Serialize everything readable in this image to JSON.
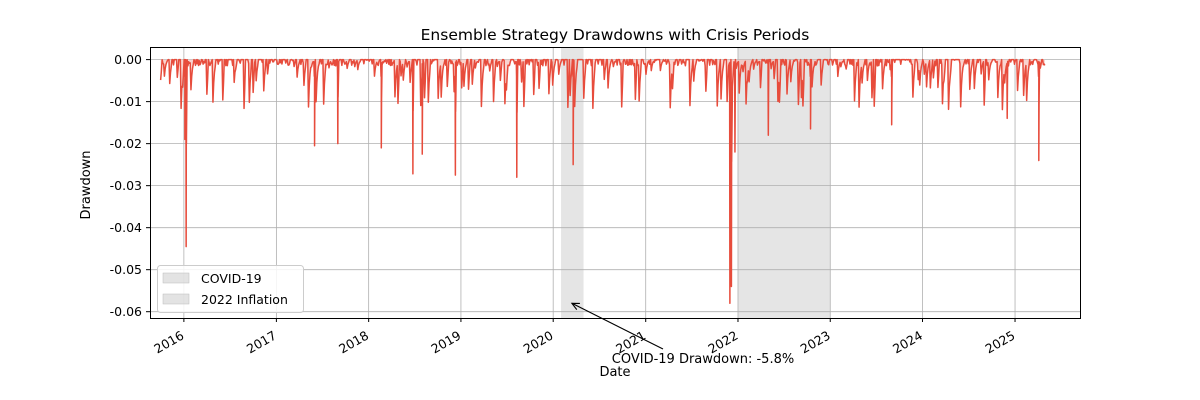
{
  "chart_data": {
    "type": "area",
    "title": "Ensemble Strategy Drawdowns with Crisis Periods",
    "xlabel": "Date",
    "ylabel": "Drawdown",
    "xlim": [
      "2015-08-20",
      "2025-09-15"
    ],
    "ylim": [
      -0.0615,
      0.003
    ],
    "x_ticks": [
      "2016",
      "2017",
      "2018",
      "2019",
      "2020",
      "2021",
      "2022",
      "2023",
      "2024",
      "2025"
    ],
    "y_ticks": [
      "0.00",
      "-0.01",
      "-0.02",
      "-0.03",
      "-0.04",
      "-0.05",
      "-0.06"
    ],
    "y_tick_values": [
      0.0,
      -0.01,
      -0.02,
      -0.03,
      -0.04,
      -0.05,
      -0.06
    ],
    "grid": true,
    "legend_position": "lower-left",
    "series_color": "#e74c3c",
    "fill_color": "#f5b7b1",
    "shade_color": "#cccccc",
    "date_range": [
      "2015-10-01",
      "2025-05-01"
    ],
    "crisis_periods": [
      {
        "name": "COVID-19",
        "start": "2020-02-01",
        "end": "2020-04-30"
      },
      {
        "name": "2022 Inflation",
        "start": "2022-01-01",
        "end": "2022-12-31"
      }
    ],
    "notable_drawdowns": [
      {
        "date": "2016-01-10",
        "value": -0.0445
      },
      {
        "date": "2016-01-05",
        "value": -0.019
      },
      {
        "date": "2017-06-01",
        "value": -0.0205
      },
      {
        "date": "2017-09-01",
        "value": -0.02
      },
      {
        "date": "2018-02-20",
        "value": -0.021
      },
      {
        "date": "2018-06-25",
        "value": -0.0272
      },
      {
        "date": "2018-08-01",
        "value": -0.0225
      },
      {
        "date": "2018-12-10",
        "value": -0.0275
      },
      {
        "date": "2019-08-10",
        "value": -0.028
      },
      {
        "date": "2020-03-20",
        "value": -0.025
      },
      {
        "date": "2021-11-30",
        "value": -0.058
      },
      {
        "date": "2021-12-06",
        "value": -0.054
      },
      {
        "date": "2021-12-20",
        "value": -0.022
      },
      {
        "date": "2022-05-01",
        "value": -0.018
      },
      {
        "date": "2022-10-15",
        "value": -0.0165
      },
      {
        "date": "2023-09-01",
        "value": -0.0155
      },
      {
        "date": "2024-12-01",
        "value": -0.014
      },
      {
        "date": "2025-04-05",
        "value": -0.024
      }
    ],
    "annotation": {
      "text": "COVID-19 Drawdown: -5.8%",
      "target_date": "2020-03-15",
      "target_value": -0.058
    }
  }
}
